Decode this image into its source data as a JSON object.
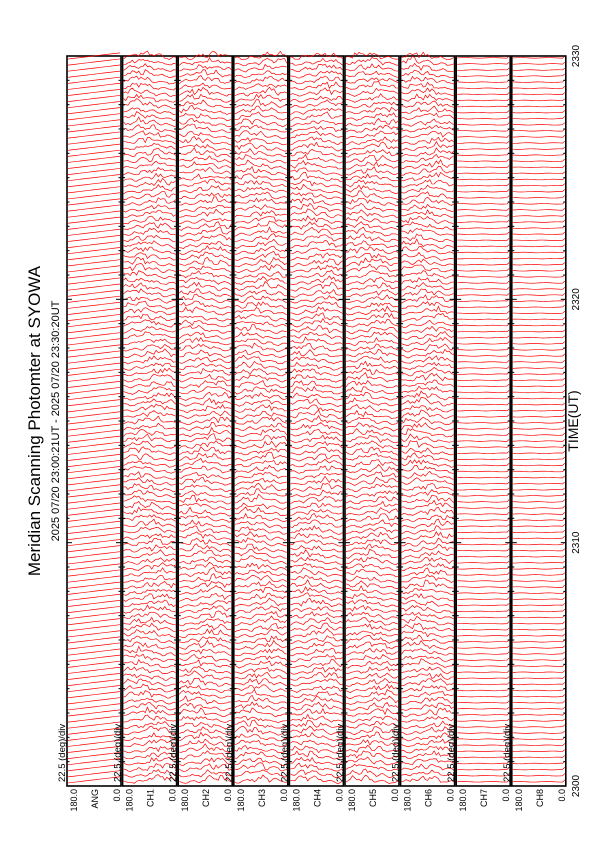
{
  "chart_data": {
    "type": "line",
    "title": "Meridian Scanning Photomter at SYOWA",
    "time_range": "2025 07/20 23:00:21UT - 2025 07/20 23:30:20UT",
    "xlabel": "TIME(UT)",
    "x_ticks": [
      "2300",
      "2310",
      "2320",
      "2330"
    ],
    "xlim": [
      0,
      30
    ],
    "ylim": [
      0,
      180
    ],
    "y_ticks": [
      "0.0",
      "180.0"
    ],
    "scale_label": "22.5 (deg)/div",
    "series_color": "#ff0000",
    "panels": [
      {
        "name": "ANG",
        "trace_type": "angle-ramp"
      },
      {
        "name": "CH1",
        "trace_type": "intensity"
      },
      {
        "name": "CH2",
        "trace_type": "intensity"
      },
      {
        "name": "CH3",
        "trace_type": "intensity"
      },
      {
        "name": "CH4",
        "trace_type": "intensity"
      },
      {
        "name": "CH5",
        "trace_type": "intensity"
      },
      {
        "name": "CH6",
        "trace_type": "intensity"
      },
      {
        "name": "CH7",
        "trace_type": "flat"
      },
      {
        "name": "CH8",
        "trace_type": "flat"
      }
    ]
  }
}
